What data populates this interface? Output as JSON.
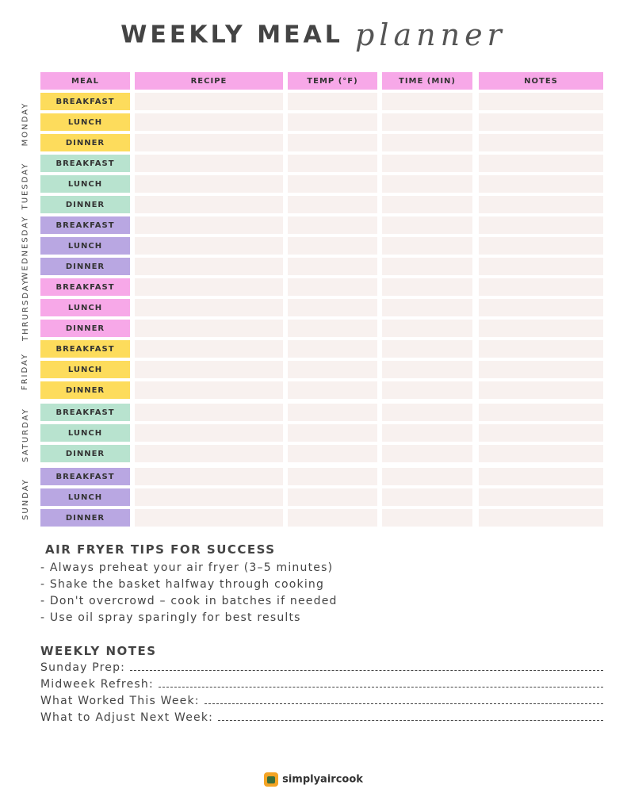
{
  "title": {
    "main": "WEEKLY MEAL",
    "script": "planner"
  },
  "headers": {
    "meal": "MEAL",
    "recipe": "RECIPE",
    "temp": "TEMP (°F)",
    "time": "TIME (MIN)",
    "notes": "NOTES"
  },
  "days": [
    {
      "name": "MONDAY",
      "color": "#fddc5c",
      "meals": [
        "BREAKFAST",
        "LUNCH",
        "DINNER"
      ]
    },
    {
      "name": "TUESDAY",
      "color": "#b8e3cf",
      "meals": [
        "BREAKFAST",
        "LUNCH",
        "DINNER"
      ]
    },
    {
      "name": "WEDNESDAY",
      "color": "#b9a7e2",
      "meals": [
        "BREAKFAST",
        "LUNCH",
        "DINNER"
      ]
    },
    {
      "name": "THRURSDAY",
      "color": "#f7a8e8",
      "meals": [
        "BREAKFAST",
        "LUNCH",
        "DINNER"
      ]
    },
    {
      "name": "FRIDAY",
      "color": "#fddc5c",
      "meals": [
        "BREAKFAST",
        "LUNCH",
        "DINNER"
      ]
    },
    {
      "name": "SATURDAY",
      "color": "#b8e3cf",
      "meals": [
        "BREAKFAST",
        "LUNCH",
        "DINNER"
      ]
    },
    {
      "name": "SUNDAY",
      "color": "#b9a7e2",
      "meals": [
        "BREAKFAST",
        "LUNCH",
        "DINNER"
      ]
    }
  ],
  "tips": {
    "title": "AIR FRYER TIPS FOR SUCCESS",
    "items": [
      "- Always preheat your air fryer (3–5 minutes)",
      "- Shake the basket halfway through cooking",
      "- Don't overcrowd – cook in batches if needed",
      "- Use oil spray sparingly for best results"
    ]
  },
  "weekly_notes": {
    "title": "WEEKLY NOTES",
    "lines": [
      "Sunday Prep:",
      "Midweek Refresh:",
      "What Worked This Week:",
      "What to Adjust Next Week:"
    ]
  },
  "brand": {
    "name": "simplyaircook",
    "icon": "air-fryer-logo-icon"
  },
  "colors": {
    "header": "#f7a8e8",
    "cell": "#f8f1ef"
  }
}
